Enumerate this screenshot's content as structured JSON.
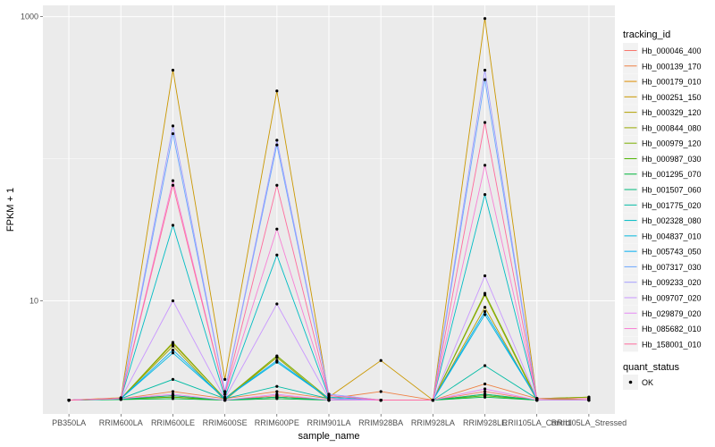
{
  "chart_data": {
    "type": "line",
    "xlabel": "sample_name",
    "ylabel": "FPKM + 1",
    "y_scale": "log10",
    "ylim": [
      1.6,
      1200
    ],
    "y_ticks": [
      {
        "value": 10,
        "label": "10"
      },
      {
        "value": 1000,
        "label": "1000"
      }
    ],
    "grid": true,
    "categories": [
      "PB350LA",
      "RRIM600LA",
      "RRIM600LE",
      "RRIM600SE",
      "RRIM600PE",
      "RRIM901LA",
      "RRIM928BA",
      "RRIM928LA",
      "RRIM928LE",
      "RRII105LA_Control",
      "RRII105LA_Stressed"
    ],
    "legend_title": "tracking_id",
    "legend_position": "right",
    "point_legend_title": "quant_status",
    "point_legend_label": "OK",
    "series": [
      {
        "name": "Hb_000046_400",
        "color": "#F8766D",
        "values": [
          2.0,
          2.05,
          2.15,
          2.0,
          2.15,
          2.0,
          2.0,
          2.0,
          2.3,
          2.0,
          2.0
        ]
      },
      {
        "name": "Hb_000139_170",
        "color": "#EE8044",
        "values": [
          2.0,
          2.05,
          2.3,
          2.05,
          2.3,
          2.05,
          2.3,
          2.0,
          2.6,
          2.05,
          2.05
        ]
      },
      {
        "name": "Hb_000179_010",
        "color": "#DE8C00",
        "values": [
          2.0,
          2.05,
          2.1,
          2.0,
          2.1,
          2.0,
          2.0,
          2.0,
          2.2,
          2.0,
          2.0
        ]
      },
      {
        "name": "Hb_000251_150",
        "color": "#CA9700",
        "values": [
          2.0,
          2.08,
          420,
          2.8,
          300,
          2.1,
          3.8,
          2.0,
          970,
          2.05,
          2.1
        ]
      },
      {
        "name": "Hb_000329_120",
        "color": "#B3A000",
        "values": [
          2.0,
          2.05,
          5.0,
          2.05,
          4.0,
          2.0,
          2.0,
          2.0,
          9.0,
          2.0,
          2.05
        ]
      },
      {
        "name": "Hb_000844_080",
        "color": "#99A800",
        "values": [
          2.0,
          2.05,
          4.8,
          2.0,
          4.0,
          2.0,
          2.0,
          2.0,
          11.0,
          2.0,
          2.05
        ]
      },
      {
        "name": "Hb_000979_120",
        "color": "#7AAE00",
        "values": [
          2.0,
          2.05,
          5.1,
          2.05,
          4.1,
          2.05,
          2.0,
          2.0,
          11.3,
          2.05,
          2.1
        ]
      },
      {
        "name": "Hb_000987_030",
        "color": "#4DB300",
        "values": [
          2.0,
          2.03,
          2.1,
          2.0,
          2.1,
          2.0,
          2.0,
          2.0,
          2.15,
          2.0,
          2.0
        ]
      },
      {
        "name": "Hb_001295_070",
        "color": "#00B63B",
        "values": [
          2.0,
          2.02,
          2.05,
          2.0,
          2.05,
          2.0,
          2.0,
          2.0,
          2.1,
          2.0,
          2.0
        ]
      },
      {
        "name": "Hb_001507_060",
        "color": "#00BA7C",
        "values": [
          2.0,
          2.03,
          2.15,
          2.0,
          2.1,
          2.0,
          2.0,
          2.0,
          2.2,
          2.0,
          2.0
        ]
      },
      {
        "name": "Hb_001775_020",
        "color": "#00BBA4",
        "values": [
          2.0,
          2.05,
          2.8,
          2.05,
          2.5,
          2.05,
          2.0,
          2.0,
          3.5,
          2.05,
          2.05
        ]
      },
      {
        "name": "Hb_002328_080",
        "color": "#00BCC4",
        "values": [
          2.0,
          2.05,
          34,
          2.1,
          21,
          2.1,
          2.0,
          2.0,
          56,
          2.05,
          2.05
        ]
      },
      {
        "name": "Hb_004837_010",
        "color": "#00B7DE",
        "values": [
          2.0,
          2.05,
          4.3,
          2.05,
          3.7,
          2.05,
          2.0,
          2.0,
          8.0,
          2.05,
          2.05
        ]
      },
      {
        "name": "Hb_005743_050",
        "color": "#00AEF3",
        "values": [
          2.0,
          2.05,
          4.5,
          2.05,
          3.8,
          2.05,
          2.0,
          2.0,
          8.4,
          2.05,
          2.05
        ]
      },
      {
        "name": "Hb_007317_030",
        "color": "#6BA7FF",
        "values": [
          2.0,
          2.06,
          150,
          2.3,
          125,
          2.2,
          2.0,
          2.0,
          360,
          2.05,
          2.05
        ]
      },
      {
        "name": "Hb_009233_020",
        "color": "#A59EFF",
        "values": [
          2.0,
          2.06,
          170,
          2.3,
          135,
          2.2,
          2.0,
          2.0,
          420,
          2.05,
          2.05
        ]
      },
      {
        "name": "Hb_009707_020",
        "color": "#C996FF",
        "values": [
          2.0,
          2.05,
          10,
          2.05,
          9.5,
          2.05,
          2.0,
          2.0,
          15,
          2.05,
          2.05
        ]
      },
      {
        "name": "Hb_029879_020",
        "color": "#E58BF4",
        "values": [
          2.0,
          2.05,
          2.2,
          2.0,
          2.2,
          2.0,
          2.0,
          2.0,
          2.4,
          2.0,
          2.0
        ]
      },
      {
        "name": "Hb_085682_010",
        "color": "#F87FD4",
        "values": [
          2.0,
          2.06,
          70,
          2.2,
          32,
          2.15,
          2.0,
          2.0,
          90,
          2.05,
          2.05
        ]
      },
      {
        "name": "Hb_158001_010",
        "color": "#FF6C9D",
        "values": [
          2.0,
          2.06,
          65,
          2.2,
          65,
          2.15,
          2.0,
          2.0,
          180,
          2.05,
          2.05
        ]
      }
    ]
  }
}
